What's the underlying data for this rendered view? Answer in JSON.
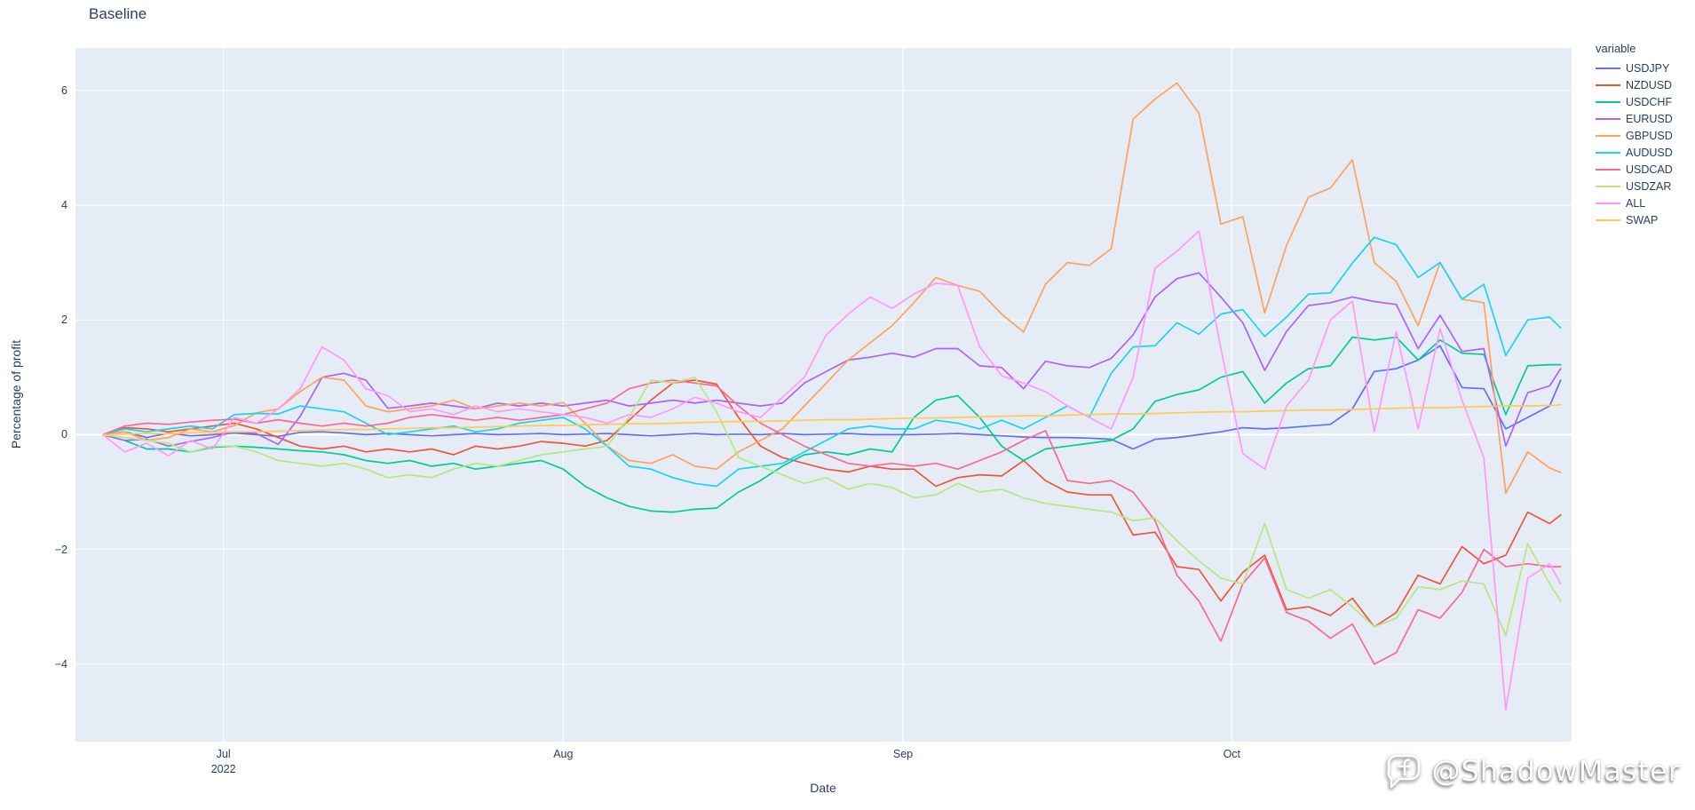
{
  "title": "Baseline",
  "watermark": {
    "handle": "@ShadowMaster",
    "logo": "chat-bubble-f-icon"
  },
  "colors": {
    "plot_bg": "#E5ECF6",
    "grid": "#FFFFFF",
    "text": "#2A3F5F",
    "paper": "#FFFFFF"
  },
  "legend": {
    "title": "variable"
  },
  "axes": {
    "x_title": "Date",
    "y_title": "Percentage of profit",
    "y_gridlines": [
      6,
      4,
      2,
      0,
      -2,
      -4
    ],
    "y_tick_labels": [
      "6",
      "4",
      "2",
      "0",
      "−2",
      "−4"
    ],
    "x_ticks": [
      {
        "label": "Jul",
        "sub": "2022",
        "date": "2022-07-01"
      },
      {
        "label": "Aug",
        "sub": "",
        "date": "2022-08-01"
      },
      {
        "label": "Sep",
        "sub": "",
        "date": "2022-09-01"
      },
      {
        "label": "Oct",
        "sub": "",
        "date": "2022-10-01"
      }
    ]
  },
  "chart_data": {
    "type": "line",
    "title": "Baseline",
    "xlabel": "Date",
    "ylabel": "Percentage of profit",
    "legend_title": "variable",
    "legend_position": "right",
    "grid": true,
    "ylim": [
      -5.35,
      6.74
    ],
    "xlim": [
      "2022-06-17T12:00:00Z",
      "2022-11-01T00:00:00Z"
    ],
    "x": [
      "2022-06-20",
      "2022-06-22",
      "2022-06-24",
      "2022-06-26",
      "2022-06-28",
      "2022-06-30",
      "2022-07-02",
      "2022-07-04",
      "2022-07-06",
      "2022-07-08",
      "2022-07-10",
      "2022-07-12",
      "2022-07-14",
      "2022-07-16",
      "2022-07-18",
      "2022-07-20",
      "2022-07-22",
      "2022-07-24",
      "2022-07-26",
      "2022-07-28",
      "2022-07-30",
      "2022-08-01",
      "2022-08-03",
      "2022-08-05",
      "2022-08-07",
      "2022-08-09",
      "2022-08-11",
      "2022-08-13",
      "2022-08-15",
      "2022-08-17",
      "2022-08-19",
      "2022-08-21",
      "2022-08-23",
      "2022-08-25",
      "2022-08-27",
      "2022-08-29",
      "2022-08-31",
      "2022-09-02",
      "2022-09-04",
      "2022-09-06",
      "2022-09-08",
      "2022-09-10",
      "2022-09-12",
      "2022-09-14",
      "2022-09-16",
      "2022-09-18",
      "2022-09-20",
      "2022-09-22",
      "2022-09-24",
      "2022-09-26",
      "2022-09-28",
      "2022-09-30",
      "2022-10-02",
      "2022-10-04",
      "2022-10-06",
      "2022-10-08",
      "2022-10-10",
      "2022-10-12",
      "2022-10-14",
      "2022-10-16",
      "2022-10-18",
      "2022-10-20",
      "2022-10-22",
      "2022-10-24",
      "2022-10-26",
      "2022-10-28",
      "2022-10-30",
      "2022-10-31"
    ],
    "series": [
      {
        "name": "USDJPY",
        "color": "#636EFA",
        "values": [
          0,
          0.05,
          -0.05,
          0.03,
          -0.02,
          0,
          0.03,
          0,
          -0.03,
          0.04,
          0.05,
          0.03,
          0,
          0.02,
          0,
          -0.02,
          0,
          0.02,
          0,
          0.01,
          0.02,
          0,
          0.01,
          0.02,
          0,
          -0.02,
          0,
          0.02,
          0,
          0.01,
          0,
          0.02,
          0,
          0.01,
          0.02,
          0,
          0,
          0,
          0.01,
          0.02,
          0,
          -0.02,
          -0.04,
          -0.05,
          -0.05,
          -0.06,
          -0.08,
          -0.25,
          -0.08,
          -0.05,
          0,
          0.05,
          0.12,
          0.1,
          0.12,
          0.15,
          0.18,
          0.45,
          1.1,
          1.15,
          1.3,
          1.55,
          0.82,
          0.8,
          0.1,
          0.3,
          0.5,
          0.95
        ]
      },
      {
        "name": "NZDUSD",
        "color": "#EF553B",
        "values": [
          0,
          0.12,
          0.1,
          0.05,
          0.1,
          0.15,
          0.2,
          0.1,
          -0.05,
          -0.2,
          -0.25,
          -0.2,
          -0.3,
          -0.25,
          -0.3,
          -0.25,
          -0.35,
          -0.2,
          -0.25,
          -0.2,
          -0.12,
          -0.15,
          -0.2,
          -0.1,
          0.25,
          0.6,
          0.9,
          0.95,
          0.88,
          0.3,
          -0.2,
          -0.4,
          -0.5,
          -0.6,
          -0.65,
          -0.55,
          -0.6,
          -0.6,
          -0.9,
          -0.75,
          -0.7,
          -0.72,
          -0.45,
          -0.8,
          -1,
          -1.05,
          -1.05,
          -1.75,
          -1.7,
          -2.3,
          -2.35,
          -2.9,
          -2.4,
          -2.1,
          -3.05,
          -3,
          -3.15,
          -2.85,
          -3.35,
          -3.1,
          -2.45,
          -2.6,
          -1.95,
          -2.25,
          -2.1,
          -1.35,
          -1.55,
          -1.4
        ]
      },
      {
        "name": "USDCHF",
        "color": "#00CC96",
        "values": [
          0,
          -0.1,
          -0.25,
          -0.25,
          -0.3,
          -0.22,
          -0.2,
          -0.22,
          -0.25,
          -0.28,
          -0.3,
          -0.35,
          -0.45,
          -0.5,
          -0.45,
          -0.55,
          -0.5,
          -0.6,
          -0.55,
          -0.5,
          -0.45,
          -0.6,
          -0.9,
          -1.1,
          -1.25,
          -1.33,
          -1.35,
          -1.3,
          -1.28,
          -1,
          -0.8,
          -0.55,
          -0.35,
          -0.3,
          -0.35,
          -0.25,
          -0.3,
          0.3,
          0.6,
          0.68,
          0.3,
          -0.2,
          -0.45,
          -0.25,
          -0.2,
          -0.15,
          -0.1,
          0.1,
          0.58,
          0.7,
          0.78,
          1,
          1.1,
          0.55,
          0.9,
          1.15,
          1.2,
          1.7,
          1.65,
          1.7,
          1.3,
          1.65,
          1.42,
          1.4,
          0.35,
          1.2,
          1.22,
          1.22
        ]
      },
      {
        "name": "EURUSD",
        "color": "#AB63FA",
        "values": [
          0,
          -0.1,
          -0.08,
          -0.2,
          -0.12,
          -0.05,
          0.05,
          0.02,
          -0.17,
          0.32,
          1,
          1.07,
          0.95,
          0.46,
          0.5,
          0.55,
          0.5,
          0.45,
          0.55,
          0.5,
          0.55,
          0.5,
          0.55,
          0.6,
          0.5,
          0.55,
          0.6,
          0.55,
          0.6,
          0.55,
          0.5,
          0.55,
          0.9,
          1.1,
          1.3,
          1.35,
          1.42,
          1.35,
          1.5,
          1.5,
          1.2,
          1.17,
          0.8,
          1.28,
          1.2,
          1.17,
          1.33,
          1.74,
          2.4,
          2.72,
          2.82,
          2.4,
          1.95,
          1.12,
          1.8,
          2.25,
          2.3,
          2.4,
          2.32,
          2.27,
          1.5,
          2.08,
          1.45,
          1.5,
          -0.2,
          0.73,
          0.85,
          1.15
        ]
      },
      {
        "name": "GBPUSD",
        "color": "#FFA15A",
        "values": [
          0,
          0.05,
          -0.1,
          -0.05,
          0.1,
          0.05,
          0.16,
          0.38,
          0.45,
          0.75,
          1,
          0.95,
          0.5,
          0.4,
          0.45,
          0.5,
          0.6,
          0.45,
          0.5,
          0.55,
          0.5,
          0.56,
          0.2,
          -0.2,
          -0.45,
          -0.5,
          -0.35,
          -0.55,
          -0.6,
          -0.3,
          -0.1,
          0.1,
          0.5,
          0.9,
          1.3,
          1.6,
          1.9,
          2.3,
          2.74,
          2.6,
          2.5,
          2.1,
          1.79,
          2.62,
          3,
          2.95,
          3.24,
          5.5,
          5.85,
          6.13,
          5.6,
          3.67,
          3.8,
          2.12,
          3.3,
          4.14,
          4.3,
          4.79,
          3,
          2.67,
          1.9,
          3,
          2.36,
          2.3,
          -1.02,
          -0.3,
          -0.58,
          -0.66
        ]
      },
      {
        "name": "AUDUSD",
        "color": "#19D3F3",
        "values": [
          0,
          0.1,
          0.05,
          0.1,
          0.15,
          0.1,
          0.35,
          0.37,
          0.36,
          0.5,
          0.45,
          0.4,
          0.2,
          0,
          0.05,
          0.1,
          0.15,
          0.05,
          0.1,
          0.2,
          0.25,
          0.3,
          0.1,
          -0.2,
          -0.55,
          -0.6,
          -0.75,
          -0.85,
          -0.9,
          -0.6,
          -0.55,
          -0.5,
          -0.3,
          -0.1,
          0.1,
          0.15,
          0.1,
          0.1,
          0.25,
          0.2,
          0.1,
          0.25,
          0.1,
          0.3,
          0.5,
          0.3,
          1.07,
          1.53,
          1.55,
          1.95,
          1.75,
          2.1,
          2.18,
          1.71,
          2.05,
          2.45,
          2.47,
          2.99,
          3.44,
          3.31,
          2.74,
          3,
          2.36,
          2.62,
          1.38,
          2,
          2.05,
          1.86
        ]
      },
      {
        "name": "USDCAD",
        "color": "#FF6692",
        "values": [
          0,
          0.15,
          0.2,
          0.18,
          0.22,
          0.25,
          0.27,
          0.2,
          0.26,
          0.2,
          0.15,
          0.2,
          0.15,
          0.2,
          0.3,
          0.35,
          0.3,
          0.25,
          0.3,
          0.25,
          0.3,
          0.35,
          0.45,
          0.55,
          0.8,
          0.9,
          0.95,
          0.9,
          0.85,
          0.5,
          0.2,
          0,
          -0.2,
          -0.35,
          -0.5,
          -0.55,
          -0.5,
          -0.55,
          -0.5,
          -0.6,
          -0.45,
          -0.3,
          -0.1,
          0.07,
          -0.8,
          -0.85,
          -0.8,
          -1,
          -1.5,
          -2.45,
          -2.9,
          -3.6,
          -2.6,
          -2.15,
          -3.1,
          -3.25,
          -3.55,
          -3.3,
          -4,
          -3.8,
          -3.05,
          -3.2,
          -2.75,
          -2,
          -2.3,
          -2.25,
          -2.3,
          -2.3
        ]
      },
      {
        "name": "USDZAR",
        "color": "#B6E880",
        "values": [
          0,
          -0.05,
          -0.1,
          -0.15,
          -0.3,
          -0.2,
          -0.2,
          -0.3,
          -0.45,
          -0.5,
          -0.55,
          -0.5,
          -0.6,
          -0.75,
          -0.7,
          -0.75,
          -0.6,
          -0.5,
          -0.55,
          -0.45,
          -0.35,
          -0.3,
          -0.25,
          -0.2,
          0.3,
          0.95,
          0.9,
          1,
          0.4,
          -0.4,
          -0.55,
          -0.7,
          -0.85,
          -0.75,
          -0.95,
          -0.85,
          -0.92,
          -1.1,
          -1.05,
          -0.85,
          -1,
          -0.95,
          -1.1,
          -1.2,
          -1.25,
          -1.3,
          -1.35,
          -1.5,
          -1.45,
          -1.85,
          -2.2,
          -2.5,
          -2.6,
          -1.55,
          -2.7,
          -2.85,
          -2.7,
          -3,
          -3.35,
          -3.2,
          -2.65,
          -2.7,
          -2.55,
          -2.6,
          -3.5,
          -1.9,
          -2.6,
          -2.9
        ]
      },
      {
        "name": "ALL",
        "color": "#FF97FF",
        "values": [
          0,
          -0.3,
          -0.15,
          -0.37,
          -0.1,
          -0.25,
          0.3,
          0.2,
          0.45,
          0.8,
          1.53,
          1.3,
          0.8,
          0.68,
          0.4,
          0.45,
          0.35,
          0.5,
          0.4,
          0.45,
          0.4,
          0.35,
          0.3,
          0.2,
          0.35,
          0.3,
          0.45,
          0.65,
          0.55,
          0.4,
          0.3,
          0.65,
          1,
          1.74,
          2.1,
          2.4,
          2.2,
          2.45,
          2.64,
          2.6,
          1.53,
          1.03,
          0.9,
          0.75,
          0.5,
          0.3,
          0.1,
          1,
          2.9,
          3.2,
          3.55,
          1.5,
          -0.33,
          -0.6,
          0.5,
          0.95,
          2,
          2.33,
          0.05,
          1.8,
          0.1,
          1.85,
          0.6,
          -0.4,
          -4.8,
          -2.5,
          -2.25,
          -2.6
        ]
      },
      {
        "name": "SWAP",
        "color": "#FECB52",
        "values": [
          0,
          0.01,
          0.02,
          0.02,
          0.03,
          0.04,
          0.05,
          0.05,
          0.06,
          0.07,
          0.08,
          0.09,
          0.09,
          0.1,
          0.11,
          0.12,
          0.12,
          0.13,
          0.14,
          0.15,
          0.16,
          0.16,
          0.17,
          0.18,
          0.19,
          0.19,
          0.2,
          0.21,
          0.22,
          0.23,
          0.23,
          0.24,
          0.25,
          0.26,
          0.26,
          0.27,
          0.28,
          0.29,
          0.29,
          0.3,
          0.31,
          0.32,
          0.33,
          0.33,
          0.34,
          0.35,
          0.36,
          0.36,
          0.37,
          0.38,
          0.39,
          0.4,
          0.4,
          0.41,
          0.42,
          0.43,
          0.43,
          0.44,
          0.45,
          0.46,
          0.47,
          0.47,
          0.48,
          0.49,
          0.5,
          0.5,
          0.51,
          0.52
        ]
      }
    ]
  }
}
